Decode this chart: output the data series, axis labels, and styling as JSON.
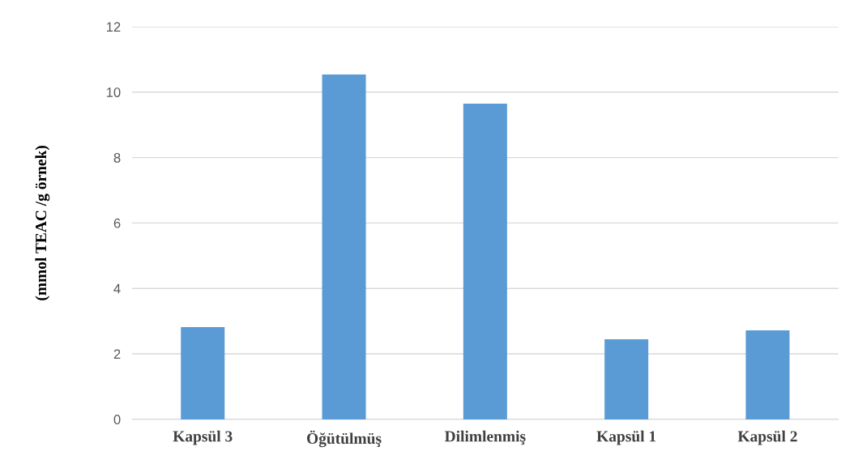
{
  "chart_data": {
    "type": "bar",
    "ylabel": "(mmol TEAC /g örnek)",
    "categories": [
      "Kapsül 3",
      "Öğütülmüş",
      "Dilimlenmiş",
      "Kapsül 1",
      "Kapsül 2"
    ],
    "values": [
      2.82,
      10.54,
      9.65,
      2.45,
      2.72
    ],
    "color": "#5b9bd5",
    "ylim": [
      0,
      12
    ],
    "yticks": [
      0,
      2,
      4,
      6,
      8,
      10,
      12
    ],
    "grid": "y",
    "legend": false
  }
}
